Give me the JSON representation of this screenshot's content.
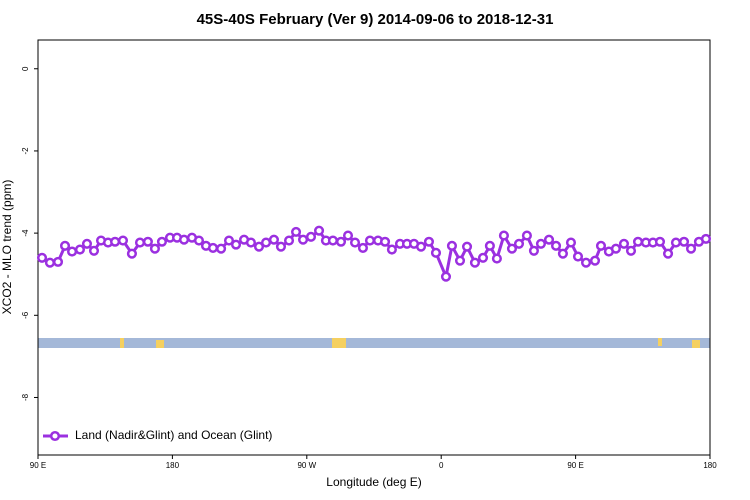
{
  "chart_data": {
    "type": "line",
    "title": "45S-40S February (Ver 9)   2014-09-06 to 2018-12-31",
    "xlabel": "Longitude (deg E)",
    "ylabel": "XCO2 - MLO trend (ppm)",
    "xlim": [
      90,
      540
    ],
    "ylim": [
      -9.4,
      0.7
    ],
    "xticks": [
      {
        "value": 90,
        "label": "90 E"
      },
      180,
      {
        "value": 270,
        "label": "90 W"
      },
      {
        "value": 360,
        "label": "0"
      },
      {
        "value": 450,
        "label": "90 E"
      },
      {
        "value": 540,
        "label": "180"
      }
    ],
    "yticks": [
      0,
      -2,
      -4,
      -6,
      -8
    ],
    "legend": "bottom-left",
    "series": [
      {
        "name": "Land (Nadir&Glint) and Ocean (Glint)",
        "color": "#9b30e0",
        "x": [
          92.7,
          98,
          103.4,
          108.1,
          112.8,
          118.1,
          122.8,
          127.5,
          132.2,
          136.9,
          141.6,
          146.9,
          152.9,
          158.3,
          163.6,
          168.3,
          173,
          178.4,
          183.1,
          187.8,
          193.1,
          197.8,
          202.5,
          207.2,
          212.6,
          217.9,
          222.6,
          228,
          232.6,
          238,
          242.7,
          248,
          252.7,
          258.1,
          262.8,
          267.5,
          272.8,
          278.2,
          282.8,
          287.5,
          292.9,
          297.6,
          302.3,
          307.6,
          312.3,
          317.7,
          322.4,
          327,
          332.4,
          337.1,
          341.8,
          346.5,
          351.8,
          356.5,
          363.2,
          367.2,
          372.6,
          377.3,
          382.6,
          388,
          392.6,
          397.3,
          402,
          407.4,
          412.1,
          417.4,
          422.1,
          426.8,
          432.2,
          436.9,
          441.5,
          446.9,
          451.6,
          457,
          463,
          467,
          472.3,
          477,
          482.4,
          487.1,
          491.8,
          497.1,
          501.8,
          506.5,
          511.9,
          517.2,
          522.6,
          527.3,
          532.6,
          537.3
        ],
        "values": [
          -4.6,
          -4.72,
          -4.7,
          -4.31,
          -4.45,
          -4.4,
          -4.26,
          -4.43,
          -4.18,
          -4.23,
          -4.21,
          -4.18,
          -4.5,
          -4.23,
          -4.21,
          -4.38,
          -4.21,
          -4.11,
          -4.11,
          -4.16,
          -4.11,
          -4.18,
          -4.31,
          -4.36,
          -4.38,
          -4.18,
          -4.28,
          -4.16,
          -4.23,
          -4.33,
          -4.23,
          -4.16,
          -4.33,
          -4.18,
          -3.97,
          -4.16,
          -4.09,
          -3.94,
          -4.18,
          -4.18,
          -4.21,
          -4.06,
          -4.23,
          -4.36,
          -4.18,
          -4.18,
          -4.21,
          -4.4,
          -4.26,
          -4.26,
          -4.26,
          -4.33,
          -4.21,
          -4.48,
          -5.06,
          -4.31,
          -4.67,
          -4.33,
          -4.72,
          -4.6,
          -4.31,
          -4.62,
          -4.06,
          -4.38,
          -4.26,
          -4.06,
          -4.43,
          -4.26,
          -4.16,
          -4.31,
          -4.5,
          -4.23,
          -4.57,
          -4.72,
          -4.67,
          -4.31,
          -4.45,
          -4.38,
          -4.26,
          -4.43,
          -4.21,
          -4.23,
          -4.23,
          -4.21,
          -4.5,
          -4.23,
          -4.21,
          -4.38,
          -4.21,
          -4.14
        ]
      }
    ]
  }
}
